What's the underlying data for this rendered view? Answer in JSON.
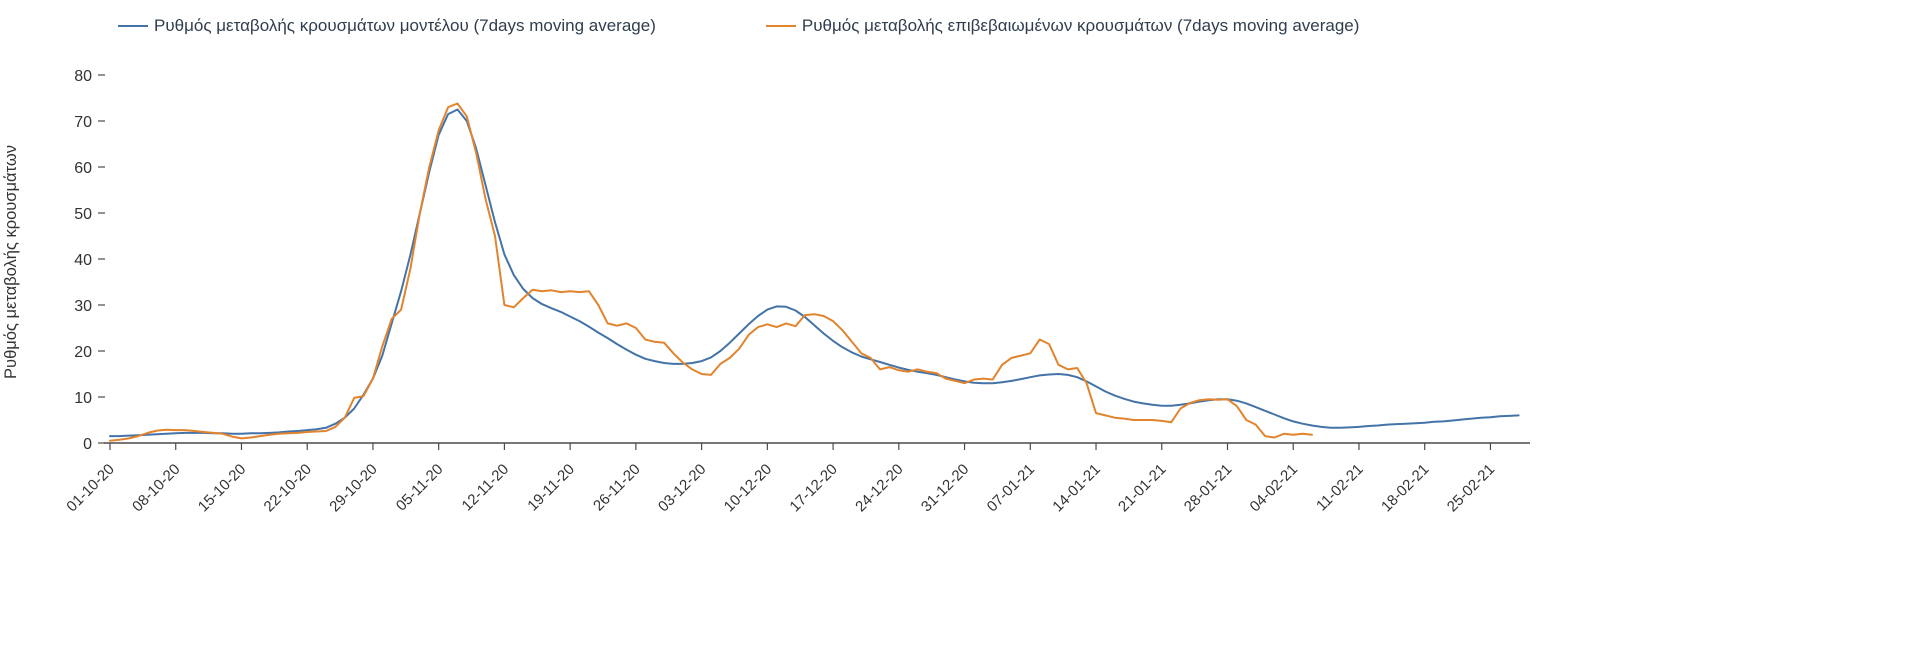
{
  "chart_data": {
    "type": "line",
    "title": "",
    "ylabel": "Ρυθμός μεταβολής κρουσμάτων",
    "xlabel": "",
    "ylim": [
      0,
      80
    ],
    "yticks": [
      0,
      10,
      20,
      30,
      40,
      50,
      60,
      70,
      80
    ],
    "x_range": [
      0,
      151
    ],
    "grid": false,
    "legend_position": "top",
    "colors": {
      "axis": "#4a4a4a",
      "tick_text": "#333333"
    },
    "xticks": [
      "01-10-20",
      "08-10-20",
      "15-10-20",
      "22-10-20",
      "29-10-20",
      "05-11-20",
      "12-11-20",
      "19-11-20",
      "26-11-20",
      "03-12-20",
      "10-12-20",
      "17-12-20",
      "24-12-20",
      "31-12-20",
      "07-01-21",
      "14-01-21",
      "21-01-21",
      "28-01-21",
      "04-02-21",
      "11-02-21",
      "18-02-21",
      "25-02-21"
    ],
    "xtick_positions": [
      0,
      7,
      14,
      21,
      28,
      35,
      42,
      49,
      56,
      63,
      70,
      77,
      84,
      91,
      98,
      105,
      112,
      119,
      126,
      133,
      140,
      147
    ],
    "series": [
      {
        "name": "Ρυθμός μεταβολής κρουσμάτων μοντέλου (7days moving average)",
        "color": "#4473a7",
        "x_start": 0,
        "x_step": 1,
        "values": [
          1.5,
          1.5,
          1.6,
          1.7,
          1.8,
          1.9,
          2.0,
          2.1,
          2.2,
          2.2,
          2.2,
          2.1,
          2.1,
          2.0,
          2.0,
          2.1,
          2.1,
          2.2,
          2.3,
          2.5,
          2.6,
          2.8,
          3.0,
          3.3,
          4.2,
          5.5,
          7.5,
          10.5,
          14,
          19,
          26,
          33,
          41,
          50,
          59,
          67,
          71.5,
          72.5,
          70,
          64,
          56,
          48,
          41,
          36.5,
          33.5,
          31.5,
          30.2,
          29.3,
          28.5,
          27.5,
          26.5,
          25.3,
          24,
          22.8,
          21.5,
          20.3,
          19.2,
          18.3,
          17.8,
          17.4,
          17.2,
          17.2,
          17.4,
          17.8,
          18.6,
          20,
          21.8,
          23.8,
          25.8,
          27.6,
          29,
          29.7,
          29.6,
          28.8,
          27.4,
          25.6,
          23.8,
          22.2,
          20.8,
          19.7,
          18.8,
          18.2,
          17.6,
          17,
          16.4,
          15.9,
          15.5,
          15.2,
          14.8,
          14.3,
          13.8,
          13.4,
          13.1,
          13,
          13,
          13.2,
          13.5,
          13.9,
          14.3,
          14.7,
          14.9,
          15,
          14.8,
          14.3,
          13.4,
          12.3,
          11.2,
          10.3,
          9.6,
          9.0,
          8.6,
          8.3,
          8.1,
          8.1,
          8.3,
          8.6,
          9.0,
          9.3,
          9.5,
          9.5,
          9.2,
          8.6,
          7.8,
          7.0,
          6.2,
          5.4,
          4.7,
          4.2,
          3.8,
          3.5,
          3.3,
          3.3,
          3.4,
          3.5,
          3.7,
          3.8,
          4.0,
          4.1,
          4.2,
          4.3,
          4.4,
          4.6,
          4.7,
          4.9,
          5.1,
          5.3,
          5.5,
          5.6,
          5.8,
          5.9,
          6.0
        ]
      },
      {
        "name": "Ρυθμός μεταβολής επιβεβαιωμένων κρουσμάτων (7days moving average)",
        "color": "#e2842e",
        "x_start": 0,
        "x_step": 1,
        "values": [
          0.5,
          0.7,
          1.0,
          1.5,
          2.2,
          2.7,
          2.9,
          2.8,
          2.8,
          2.6,
          2.4,
          2.2,
          2.0,
          1.4,
          1.0,
          1.2,
          1.5,
          1.8,
          2.0,
          2.1,
          2.2,
          2.4,
          2.5,
          2.6,
          3.5,
          5.5,
          9.8,
          10.2,
          14,
          21,
          27,
          29,
          38,
          50,
          60,
          68,
          73,
          73.8,
          71,
          63,
          53,
          45,
          30,
          29.5,
          31.5,
          33.3,
          33,
          33.2,
          32.8,
          33,
          32.8,
          33,
          30,
          26,
          25.5,
          26,
          25,
          22.5,
          22,
          21.8,
          19.5,
          17.5,
          16,
          15,
          14.8,
          17.2,
          18.5,
          20.5,
          23.5,
          25.2,
          25.8,
          25.2,
          26,
          25.4,
          27.8,
          28,
          27.6,
          26.5,
          24.5,
          22,
          19.5,
          18.5,
          16,
          16.5,
          15.8,
          15.5,
          16,
          15.5,
          15.2,
          14,
          13.5,
          13,
          13.8,
          14,
          13.8,
          17,
          18.5,
          19,
          19.5,
          22.5,
          21.5,
          17,
          16,
          16.3,
          13,
          6.5,
          6.0,
          5.5,
          5.3,
          5.0,
          5.0,
          5.0,
          4.8,
          4.5,
          7.5,
          8.7,
          9.3,
          9.5,
          9.4,
          9.5,
          8.0,
          5.0,
          4.0,
          1.5,
          1.2,
          2.0,
          1.8,
          2.0,
          1.8
        ]
      }
    ]
  }
}
